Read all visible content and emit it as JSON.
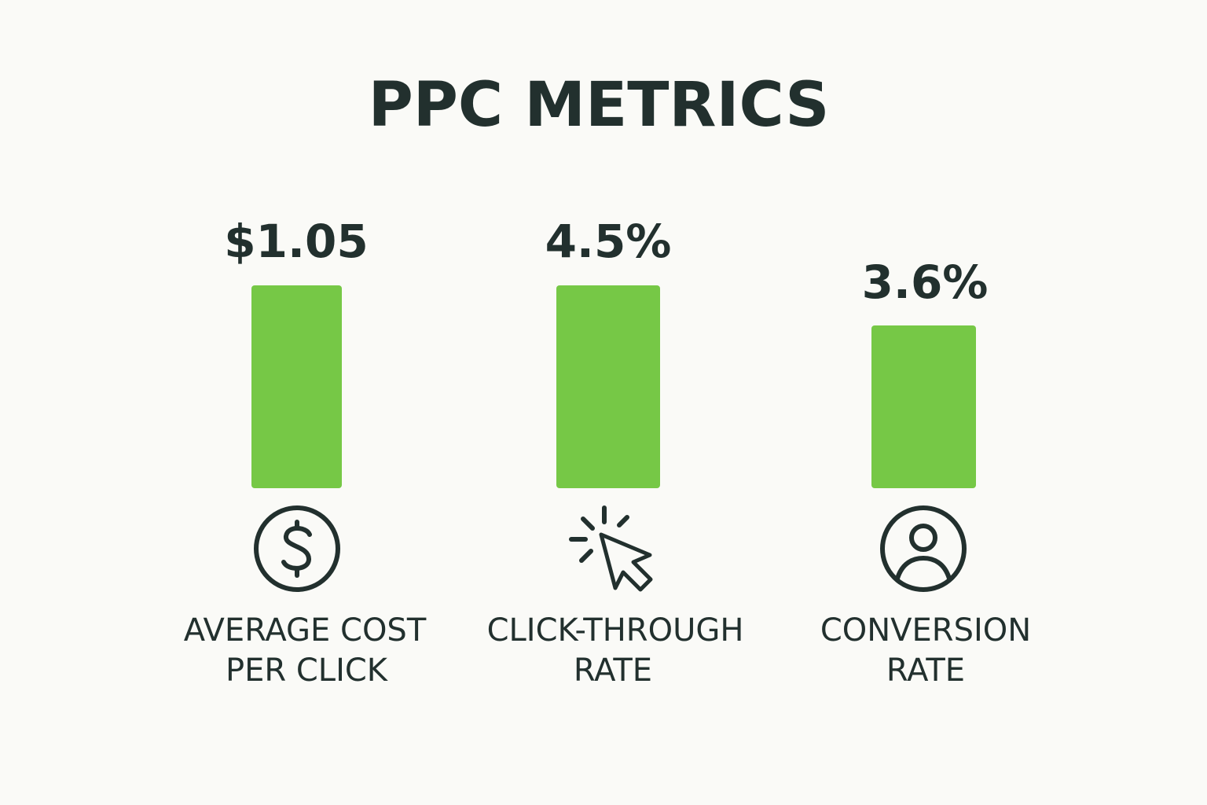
{
  "title": "PPC METRICS",
  "metrics": [
    {
      "value": "$1.05",
      "label": [
        "AVERAGE COST",
        "PER CLICK"
      ]
    },
    {
      "value": "4.5%",
      "label": [
        "CLICK-THROUGH",
        "RATE"
      ]
    },
    {
      "value": "3.6%",
      "label": [
        "CONVERSION",
        "RATE"
      ]
    }
  ]
}
